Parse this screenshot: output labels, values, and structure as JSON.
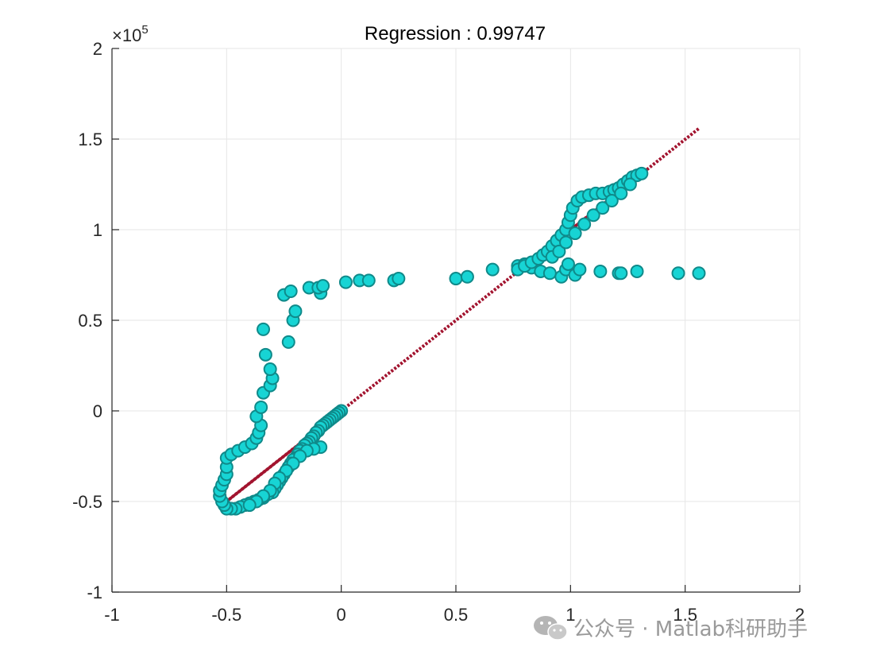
{
  "chart_data": {
    "type": "scatter",
    "title": "Regression :   0.99747",
    "xlabel": "",
    "ylabel": "",
    "xlim": [
      -1,
      2
    ],
    "ylim": [
      -1,
      2
    ],
    "y_exponent_label": "×10",
    "y_exponent_power": "5",
    "grid": true,
    "x_ticks": [
      -1,
      -0.5,
      0,
      0.5,
      1,
      1.5,
      2
    ],
    "x_tick_labels": [
      "-1",
      "-0.5",
      "0",
      "0.5",
      "1",
      "1.5",
      "2"
    ],
    "y_ticks": [
      -1,
      -0.5,
      0,
      0.5,
      1,
      1.5,
      2
    ],
    "y_tick_labels": [
      "-1",
      "-0.5",
      "0",
      "0.5",
      "1",
      "1.5",
      "2"
    ],
    "colors": {
      "marker_fill": "#17d4d4",
      "marker_edge": "#0f8a8a",
      "fit_line": "#a2142f",
      "axes": "#262626",
      "grid": "#e6e6e6"
    },
    "fit_line": {
      "slope": 0.999,
      "intercept": 0.0,
      "solid_segments": [
        [
          -0.53,
          -0.09
        ],
        [
          0.76,
          1.3
        ]
      ],
      "dotted_range": [
        -0.53,
        1.56
      ]
    },
    "series": [
      {
        "points": [
          [
            0.0,
            0.0
          ],
          [
            -0.01,
            -0.01
          ],
          [
            -0.02,
            -0.02
          ],
          [
            -0.03,
            -0.03
          ],
          [
            -0.04,
            -0.04
          ],
          [
            -0.05,
            -0.05
          ],
          [
            -0.06,
            -0.06
          ],
          [
            -0.07,
            -0.07
          ],
          [
            -0.08,
            -0.08
          ],
          [
            -0.09,
            -0.09
          ],
          [
            -0.1,
            -0.11
          ],
          [
            -0.11,
            -0.12
          ],
          [
            -0.12,
            -0.14
          ],
          [
            -0.13,
            -0.15
          ],
          [
            -0.14,
            -0.17
          ],
          [
            -0.15,
            -0.18
          ],
          [
            -0.16,
            -0.19
          ],
          [
            -0.17,
            -0.21
          ],
          [
            -0.18,
            -0.22
          ],
          [
            -0.19,
            -0.24
          ],
          [
            -0.2,
            -0.26
          ],
          [
            -0.21,
            -0.27
          ],
          [
            -0.22,
            -0.29
          ],
          [
            -0.23,
            -0.31
          ],
          [
            -0.24,
            -0.33
          ],
          [
            -0.25,
            -0.35
          ],
          [
            -0.26,
            -0.37
          ],
          [
            -0.27,
            -0.39
          ],
          [
            -0.28,
            -0.41
          ],
          [
            -0.29,
            -0.43
          ],
          [
            -0.3,
            -0.45
          ],
          [
            -0.32,
            -0.46
          ],
          [
            -0.34,
            -0.48
          ],
          [
            -0.36,
            -0.49
          ],
          [
            -0.38,
            -0.5
          ],
          [
            -0.4,
            -0.51
          ],
          [
            -0.42,
            -0.52
          ],
          [
            -0.44,
            -0.53
          ],
          [
            -0.46,
            -0.54
          ],
          [
            -0.48,
            -0.54
          ],
          [
            -0.5,
            -0.54
          ],
          [
            -0.51,
            -0.52
          ],
          [
            -0.52,
            -0.5
          ],
          [
            -0.53,
            -0.47
          ],
          [
            -0.53,
            -0.44
          ],
          [
            -0.52,
            -0.41
          ],
          [
            -0.51,
            -0.38
          ],
          [
            -0.5,
            -0.35
          ],
          [
            -0.5,
            -0.31
          ],
          [
            -0.5,
            -0.26
          ],
          [
            -0.48,
            -0.24
          ],
          [
            -0.45,
            -0.22
          ],
          [
            -0.42,
            -0.2
          ],
          [
            -0.39,
            -0.18
          ],
          [
            -0.37,
            -0.15
          ],
          [
            -0.36,
            -0.12
          ],
          [
            -0.35,
            -0.08
          ],
          [
            -0.37,
            -0.03
          ],
          [
            -0.35,
            0.02
          ],
          [
            -0.34,
            0.1
          ],
          [
            -0.31,
            0.14
          ],
          [
            -0.3,
            0.18
          ],
          [
            -0.31,
            0.23
          ],
          [
            -0.33,
            0.31
          ],
          [
            -0.34,
            0.45
          ],
          [
            -0.23,
            0.38
          ],
          [
            -0.21,
            0.5
          ],
          [
            -0.2,
            0.55
          ],
          [
            -0.25,
            0.64
          ],
          [
            -0.22,
            0.66
          ],
          [
            -0.14,
            0.68
          ],
          [
            -0.09,
            0.65
          ],
          [
            -0.1,
            0.68
          ],
          [
            -0.08,
            0.69
          ],
          [
            0.02,
            0.71
          ],
          [
            0.08,
            0.72
          ],
          [
            0.12,
            0.72
          ],
          [
            0.23,
            0.72
          ],
          [
            0.25,
            0.73
          ],
          [
            0.5,
            0.73
          ],
          [
            0.55,
            0.74
          ],
          [
            0.66,
            0.78
          ],
          [
            0.77,
            0.8
          ],
          [
            0.8,
            0.81
          ],
          [
            0.83,
            0.79
          ],
          [
            0.87,
            0.77
          ],
          [
            0.91,
            0.76
          ],
          [
            0.96,
            0.74
          ],
          [
            0.98,
            0.78
          ],
          [
            0.99,
            0.81
          ],
          [
            1.02,
            0.75
          ],
          [
            1.04,
            0.78
          ],
          [
            1.13,
            0.77
          ],
          [
            1.21,
            0.76
          ],
          [
            1.22,
            0.76
          ],
          [
            1.29,
            0.77
          ],
          [
            1.47,
            0.76
          ],
          [
            1.56,
            0.76
          ],
          [
            -0.09,
            -0.2
          ],
          [
            -0.12,
            -0.21
          ],
          [
            -0.15,
            -0.22
          ],
          [
            -0.18,
            -0.25
          ],
          [
            -0.21,
            -0.29
          ],
          [
            -0.24,
            -0.33
          ],
          [
            -0.27,
            -0.37
          ],
          [
            -0.29,
            -0.4
          ],
          [
            -0.31,
            -0.44
          ],
          [
            -0.34,
            -0.47
          ],
          [
            -0.37,
            -0.5
          ],
          [
            -0.4,
            -0.52
          ],
          [
            0.77,
            0.78
          ],
          [
            0.8,
            0.8
          ],
          [
            0.83,
            0.82
          ],
          [
            0.86,
            0.84
          ],
          [
            0.88,
            0.86
          ],
          [
            0.9,
            0.88
          ],
          [
            0.92,
            0.91
          ],
          [
            0.94,
            0.94
          ],
          [
            0.96,
            0.97
          ],
          [
            0.98,
            1.0
          ],
          [
            0.99,
            1.04
          ],
          [
            1.0,
            1.08
          ],
          [
            1.01,
            1.12
          ],
          [
            1.03,
            1.16
          ],
          [
            1.05,
            1.18
          ],
          [
            1.08,
            1.19
          ],
          [
            1.11,
            1.2
          ],
          [
            1.14,
            1.2
          ],
          [
            1.17,
            1.21
          ],
          [
            1.19,
            1.22
          ],
          [
            1.21,
            1.23
          ],
          [
            1.23,
            1.25
          ],
          [
            1.25,
            1.27
          ],
          [
            1.27,
            1.29
          ],
          [
            1.29,
            1.3
          ],
          [
            1.31,
            1.31
          ],
          [
            0.92,
            0.85
          ],
          [
            0.95,
            0.88
          ],
          [
            0.98,
            0.93
          ],
          [
            1.02,
            0.98
          ],
          [
            1.06,
            1.03
          ],
          [
            1.1,
            1.08
          ],
          [
            1.14,
            1.12
          ],
          [
            1.18,
            1.16
          ],
          [
            1.22,
            1.2
          ],
          [
            1.26,
            1.25
          ]
        ]
      }
    ]
  },
  "watermark": {
    "text": "公众号 · Matlab科研助手",
    "icon": "wechat-icon"
  }
}
